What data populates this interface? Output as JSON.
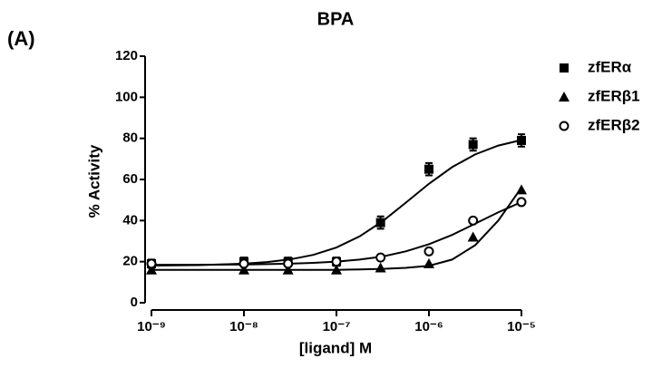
{
  "chart_data": {
    "type": "scatter",
    "panel_label": "(A)",
    "title": "BPA",
    "x_label": "[ligand] M",
    "y_label": "% Activity",
    "log_x": true,
    "legend": "right",
    "x": [
      1e-09,
      1e-08,
      3e-08,
      1e-07,
      3e-07,
      1e-06,
      3e-06,
      1e-05
    ],
    "fit_x": [
      1e-09,
      3.16e-09,
      1e-08,
      1.78e-08,
      3.16e-08,
      5.62e-08,
      1e-07,
      1.78e-07,
      3.16e-07,
      5.62e-07,
      1e-06,
      1.78e-06,
      3.16e-06,
      5.62e-06,
      1e-05
    ],
    "series": [
      {
        "name": "zfERα",
        "marker": "square",
        "color": "#000000",
        "values": [
          19,
          20,
          20,
          20,
          39,
          65,
          77,
          79
        ],
        "errors": [
          2,
          2,
          2,
          2,
          3,
          3,
          3,
          3
        ],
        "fit": [
          18.1,
          18.3,
          19.0,
          19.8,
          21.1,
          23.3,
          26.9,
          32.3,
          39.7,
          48.7,
          57.9,
          66.0,
          72.2,
          76.5,
          79.2
        ]
      },
      {
        "name": "zfERβ1",
        "marker": "triangle",
        "color": "#000000",
        "values": [
          16,
          16,
          16,
          16,
          17,
          19,
          32,
          55
        ],
        "fit": [
          16,
          16,
          16,
          16,
          16,
          16,
          16,
          16.2,
          16.5,
          17,
          18,
          21,
          28,
          40,
          56
        ]
      },
      {
        "name": "zfERβ2",
        "marker": "circle",
        "color": "#000000",
        "values": [
          19,
          19,
          19,
          20,
          22,
          25,
          40,
          49
        ],
        "fit": [
          18.5,
          18.5,
          18.6,
          18.8,
          19,
          19.4,
          20,
          21,
          22.5,
          25,
          28.5,
          33,
          38.5,
          44,
          49
        ]
      }
    ],
    "xlim": [
      1e-09,
      1e-05
    ],
    "xticks": [
      {
        "value": 1e-09,
        "label": "10⁻⁹"
      },
      {
        "value": 1e-08,
        "label": "10⁻⁸"
      },
      {
        "value": 1e-07,
        "label": "10⁻⁷"
      },
      {
        "value": 1e-06,
        "label": "10⁻⁶"
      },
      {
        "value": 1e-05,
        "label": "10⁻⁵"
      }
    ],
    "ylim": [
      0,
      120
    ],
    "yticks": [
      0,
      20,
      40,
      60,
      80,
      100,
      120
    ]
  }
}
